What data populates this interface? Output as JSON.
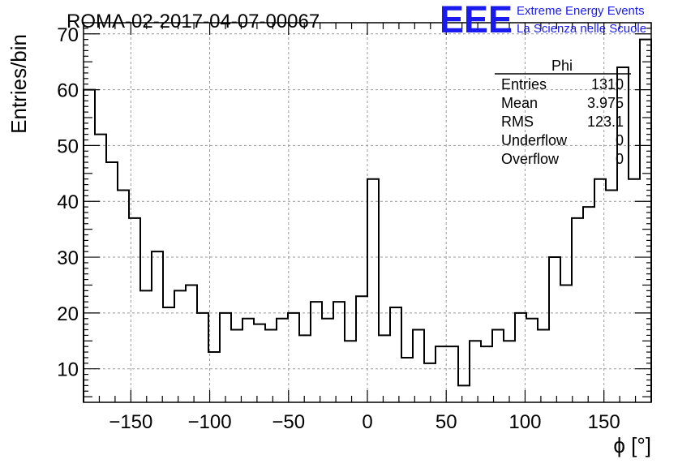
{
  "title": "ROMA-02-2017-04-07-00067",
  "logo": {
    "text": "EEE",
    "line1": "Extreme Energy Events",
    "line2": "La Scienza nelle Scuole",
    "color": "#1a1aee"
  },
  "stats": {
    "name": "Phi",
    "rows": [
      {
        "label": "Entries",
        "value": "1310"
      },
      {
        "label": "Mean",
        "value": "3.975"
      },
      {
        "label": "RMS",
        "value": "123.1"
      },
      {
        "label": "Underflow",
        "value": "0"
      },
      {
        "label": "Overflow",
        "value": "0"
      }
    ]
  },
  "chart_data": {
    "type": "bar",
    "style": "step-histogram",
    "title": "ROMA-02-2017-04-07-00067",
    "xlabel": "ϕ [°]",
    "ylabel": "Entries/bin",
    "xlim": [
      -180,
      180
    ],
    "ylim": [
      4,
      72
    ],
    "bin_width": 7.2,
    "bin_edges_start": -180,
    "values": [
      60,
      52,
      47,
      42,
      37,
      24,
      31,
      21,
      24,
      25,
      20,
      13,
      20,
      17,
      19,
      18,
      17,
      19,
      20,
      16,
      22,
      19,
      22,
      15,
      23,
      44,
      16,
      21,
      12,
      17,
      11,
      14,
      14,
      7,
      15,
      14,
      17,
      15,
      20,
      19,
      17,
      30,
      25,
      37,
      39,
      44,
      42,
      64,
      44,
      69
    ],
    "xticks": [
      -150,
      -100,
      -50,
      0,
      50,
      100,
      150
    ],
    "xtick_labels": [
      "−150",
      "−100",
      "−50",
      "0",
      "50",
      "100",
      "150"
    ],
    "yticks": [
      10,
      20,
      30,
      40,
      50,
      60,
      70
    ],
    "ytick_labels": [
      "10",
      "20",
      "30",
      "40",
      "50",
      "60",
      "70"
    ],
    "grid": true,
    "line_color": "#000000",
    "grid_color": "#999999"
  }
}
